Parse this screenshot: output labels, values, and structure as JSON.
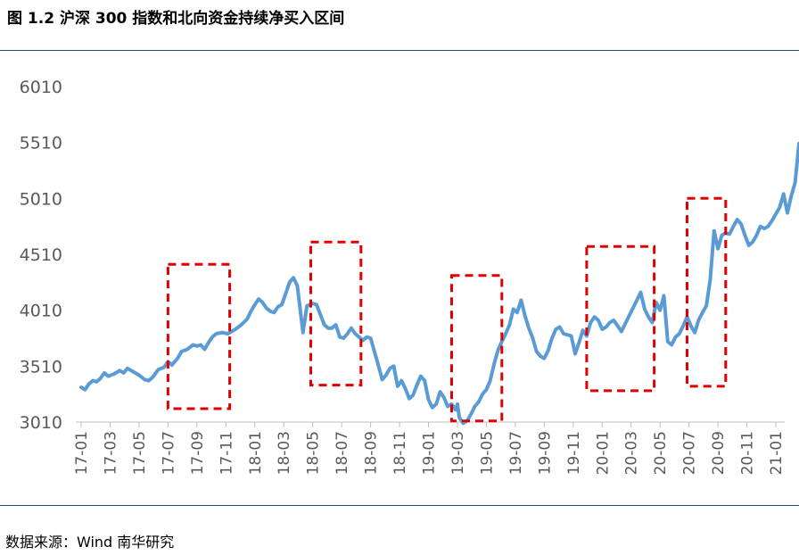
{
  "header": {
    "title": "图 1.2  沪深 300 指数和北向资金持续净买入区间"
  },
  "footer": {
    "source": "数据来源：Wind  南华研究"
  },
  "chart_data": {
    "type": "line",
    "title": "",
    "xlabel": "",
    "ylabel": "",
    "ylim": [
      3010,
      6010
    ],
    "y_ticks": [
      "3010",
      "3510",
      "4010",
      "4510",
      "5010",
      "5510",
      "6010"
    ],
    "x_ticks": [
      "17-01",
      "17-03",
      "17-05",
      "17-07",
      "17-09",
      "17-11",
      "18-01",
      "18-03",
      "18-05",
      "18-07",
      "18-09",
      "18-11",
      "19-01",
      "19-03",
      "19-05",
      "19-07",
      "19-09",
      "19-11",
      "20-01",
      "20-03",
      "20-05",
      "20-07",
      "20-09",
      "20-11",
      "21-01"
    ],
    "grid": false,
    "legend": "none",
    "colors": {
      "line": "#5b9bd5",
      "box": "#e00000",
      "axis": "#bfbfbf",
      "rule": "#1f4e79"
    },
    "series": [
      {
        "values": [
          [
            0.0,
            3320
          ],
          [
            0.2,
            3300
          ],
          [
            0.4,
            3350
          ],
          [
            0.6,
            3380
          ],
          [
            0.8,
            3370
          ],
          [
            1.0,
            3400
          ],
          [
            1.2,
            3450
          ],
          [
            1.4,
            3420
          ],
          [
            1.7,
            3440
          ],
          [
            2.0,
            3470
          ],
          [
            2.2,
            3450
          ],
          [
            2.4,
            3490
          ],
          [
            2.7,
            3460
          ],
          [
            3.0,
            3430
          ],
          [
            3.3,
            3390
          ],
          [
            3.5,
            3380
          ],
          [
            3.7,
            3410
          ],
          [
            4.0,
            3480
          ],
          [
            4.3,
            3500
          ],
          [
            4.5,
            3550
          ],
          [
            4.7,
            3520
          ],
          [
            5.0,
            3580
          ],
          [
            5.2,
            3640
          ],
          [
            5.5,
            3660
          ],
          [
            5.8,
            3700
          ],
          [
            6.0,
            3690
          ],
          [
            6.2,
            3700
          ],
          [
            6.4,
            3660
          ],
          [
            6.6,
            3720
          ],
          [
            6.8,
            3770
          ],
          [
            7.0,
            3800
          ],
          [
            7.3,
            3810
          ],
          [
            7.6,
            3800
          ],
          [
            8.0,
            3840
          ],
          [
            8.3,
            3880
          ],
          [
            8.6,
            3930
          ],
          [
            8.8,
            4000
          ],
          [
            9.0,
            4060
          ],
          [
            9.2,
            4110
          ],
          [
            9.4,
            4080
          ],
          [
            9.6,
            4030
          ],
          [
            9.8,
            4000
          ],
          [
            10.0,
            3990
          ],
          [
            10.2,
            4040
          ],
          [
            10.4,
            4060
          ],
          [
            10.6,
            4160
          ],
          [
            10.8,
            4260
          ],
          [
            11.0,
            4300
          ],
          [
            11.2,
            4230
          ],
          [
            11.5,
            3810
          ],
          [
            11.7,
            4050
          ],
          [
            12.0,
            4070
          ],
          [
            12.2,
            4060
          ],
          [
            12.4,
            3970
          ],
          [
            12.6,
            3880
          ],
          [
            12.8,
            3850
          ],
          [
            13.0,
            3850
          ],
          [
            13.2,
            3880
          ],
          [
            13.4,
            3770
          ],
          [
            13.6,
            3760
          ],
          [
            13.8,
            3800
          ],
          [
            14.0,
            3850
          ],
          [
            14.2,
            3800
          ],
          [
            14.4,
            3770
          ],
          [
            14.6,
            3740
          ],
          [
            14.8,
            3770
          ],
          [
            15.0,
            3760
          ],
          [
            15.2,
            3640
          ],
          [
            15.4,
            3520
          ],
          [
            15.6,
            3390
          ],
          [
            15.8,
            3430
          ],
          [
            16.0,
            3490
          ],
          [
            16.2,
            3510
          ],
          [
            16.4,
            3330
          ],
          [
            16.6,
            3380
          ],
          [
            16.8,
            3310
          ],
          [
            17.0,
            3220
          ],
          [
            17.2,
            3250
          ],
          [
            17.4,
            3340
          ],
          [
            17.6,
            3420
          ],
          [
            17.8,
            3380
          ],
          [
            18.0,
            3210
          ],
          [
            18.2,
            3140
          ],
          [
            18.4,
            3170
          ],
          [
            18.6,
            3280
          ],
          [
            18.8,
            3230
          ],
          [
            19.0,
            3150
          ],
          [
            19.2,
            3170
          ],
          [
            19.4,
            3120
          ],
          [
            19.5,
            3170
          ],
          [
            19.6,
            3050
          ],
          [
            19.8,
            3000
          ],
          [
            20.0,
            3020
          ],
          [
            20.2,
            3080
          ],
          [
            20.4,
            3150
          ],
          [
            20.6,
            3190
          ],
          [
            20.8,
            3260
          ],
          [
            21.0,
            3300
          ],
          [
            21.2,
            3380
          ],
          [
            21.4,
            3530
          ],
          [
            21.6,
            3650
          ],
          [
            21.8,
            3730
          ],
          [
            22.0,
            3800
          ],
          [
            22.2,
            3880
          ],
          [
            22.4,
            4020
          ],
          [
            22.6,
            3990
          ],
          [
            22.8,
            4100
          ],
          [
            23.0,
            3960
          ],
          [
            23.2,
            3850
          ],
          [
            23.4,
            3760
          ],
          [
            23.6,
            3640
          ],
          [
            23.8,
            3600
          ],
          [
            24.0,
            3580
          ],
          [
            24.2,
            3650
          ],
          [
            24.4,
            3760
          ],
          [
            24.6,
            3840
          ],
          [
            24.8,
            3860
          ],
          [
            25.0,
            3800
          ],
          [
            25.2,
            3790
          ],
          [
            25.4,
            3780
          ],
          [
            25.6,
            3620
          ],
          [
            25.8,
            3720
          ],
          [
            26.0,
            3830
          ],
          [
            26.2,
            3780
          ],
          [
            26.4,
            3900
          ],
          [
            26.6,
            3950
          ],
          [
            26.8,
            3920
          ],
          [
            27.0,
            3840
          ],
          [
            27.2,
            3860
          ],
          [
            27.4,
            3900
          ],
          [
            27.6,
            3920
          ],
          [
            27.8,
            3870
          ],
          [
            28.0,
            3820
          ],
          [
            28.2,
            3890
          ],
          [
            28.4,
            3960
          ],
          [
            28.6,
            4030
          ],
          [
            28.8,
            4100
          ],
          [
            29.0,
            4170
          ],
          [
            29.2,
            4020
          ],
          [
            29.4,
            3950
          ],
          [
            29.6,
            3900
          ],
          [
            29.8,
            4080
          ],
          [
            30.0,
            4010
          ],
          [
            30.2,
            4140
          ],
          [
            30.4,
            3730
          ],
          [
            30.6,
            3700
          ],
          [
            30.8,
            3770
          ],
          [
            31.0,
            3800
          ],
          [
            31.2,
            3870
          ],
          [
            31.4,
            3950
          ],
          [
            31.6,
            3870
          ],
          [
            31.8,
            3810
          ],
          [
            32.0,
            3920
          ],
          [
            32.2,
            3990
          ],
          [
            32.4,
            4050
          ],
          [
            32.6,
            4280
          ],
          [
            32.8,
            4720
          ],
          [
            33.0,
            4560
          ],
          [
            33.2,
            4680
          ],
          [
            33.4,
            4700
          ],
          [
            33.6,
            4690
          ],
          [
            33.8,
            4760
          ],
          [
            34.0,
            4820
          ],
          [
            34.2,
            4780
          ],
          [
            34.4,
            4680
          ],
          [
            34.6,
            4590
          ],
          [
            34.8,
            4620
          ],
          [
            35.0,
            4680
          ],
          [
            35.2,
            4760
          ],
          [
            35.4,
            4740
          ],
          [
            35.6,
            4760
          ],
          [
            35.8,
            4810
          ],
          [
            36.0,
            4870
          ],
          [
            36.2,
            4930
          ],
          [
            36.4,
            5050
          ],
          [
            36.6,
            4880
          ],
          [
            36.8,
            5030
          ],
          [
            37.0,
            5150
          ],
          [
            37.2,
            5500
          ],
          [
            37.3,
            5460
          ]
        ]
      }
    ],
    "highlight_ranges": [
      {
        "x0": 4.5,
        "x1": 7.7,
        "y0": 3130,
        "y1": 4420
      },
      {
        "x0": 11.9,
        "x1": 14.5,
        "y0": 3340,
        "y1": 4620
      },
      {
        "x0": 19.2,
        "x1": 21.8,
        "y0": 3020,
        "y1": 4320
      },
      {
        "x0": 26.2,
        "x1": 29.7,
        "y0": 3290,
        "y1": 4580
      },
      {
        "x0": 31.4,
        "x1": 33.4,
        "y0": 3330,
        "y1": 5010
      }
    ]
  }
}
